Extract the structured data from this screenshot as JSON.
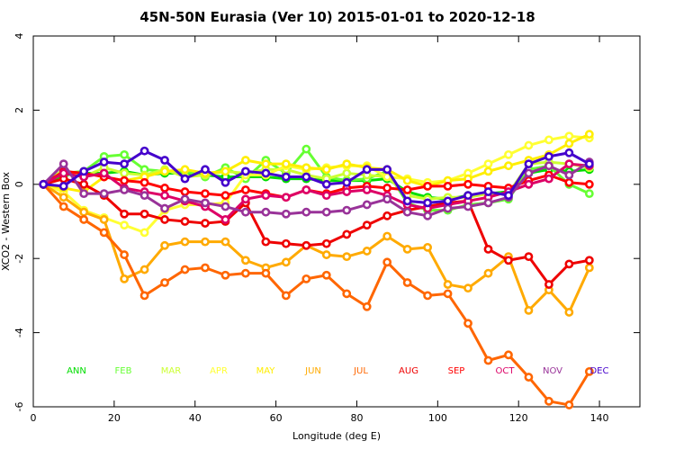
{
  "chart_data": {
    "type": "line",
    "title": "45N-50N Eurasia (Ver 10)   2015-01-01 to 2020-12-18",
    "xlabel": "Longitude (deg E)",
    "ylabel": "XCO2 - Western Box",
    "xlim": [
      0,
      150
    ],
    "ylim": [
      -6,
      4
    ],
    "xticks": [
      0,
      20,
      40,
      60,
      80,
      100,
      120,
      140
    ],
    "yticks": [
      -6,
      -4,
      -2,
      0,
      2,
      4
    ],
    "grid": false,
    "legend_placement": "bottom-inside",
    "x": [
      2.5,
      7.5,
      12.5,
      17.5,
      22.5,
      27.5,
      32.5,
      37.5,
      42.5,
      47.5,
      52.5,
      57.5,
      62.5,
      67.5,
      72.5,
      77.5,
      82.5,
      87.5,
      92.5,
      97.5,
      102.5,
      107.5,
      112.5,
      117.5,
      122.5,
      127.5,
      132.5,
      137.5
    ],
    "series": [
      {
        "name": "ANN",
        "color": "#00dd00",
        "values": [
          0,
          0.25,
          0.3,
          0.3,
          0.35,
          0.25,
          0.3,
          0.3,
          0.25,
          0.2,
          0.2,
          0.2,
          0.15,
          0.15,
          0.1,
          0.1,
          0.1,
          0.15,
          -0.2,
          -0.35,
          -0.4,
          -0.3,
          -0.25,
          -0.2,
          0.3,
          0.4,
          0.35,
          0.4
        ]
      },
      {
        "name": "FEB",
        "color": "#66ff33",
        "values": [
          0,
          0.3,
          0.35,
          0.75,
          0.8,
          0.4,
          0.35,
          0.35,
          0.2,
          0.45,
          0.15,
          0.65,
          0.3,
          0.95,
          0.2,
          0.1,
          0.15,
          0.35,
          -0.5,
          -0.7,
          -0.7,
          -0.55,
          -0.5,
          -0.4,
          0.4,
          0.5,
          0.0,
          -0.25
        ]
      },
      {
        "name": "MAR",
        "color": "#ccff33",
        "values": [
          0,
          0.4,
          0.2,
          0.45,
          0.3,
          0.25,
          0.4,
          0.2,
          0.25,
          0.35,
          0.3,
          0.4,
          0.4,
          0.25,
          0.15,
          0.3,
          0.25,
          0.2,
          -0.3,
          -0.4,
          -0.35,
          -0.35,
          -0.25,
          -0.25,
          0.55,
          0.6,
          0.55,
          0.45
        ]
      },
      {
        "name": "APR",
        "color": "#ffff33",
        "values": [
          0,
          -0.2,
          -0.7,
          -0.9,
          -1.1,
          -1.3,
          -0.7,
          -0.55,
          -0.55,
          -0.5,
          0.25,
          0.25,
          0.5,
          0.4,
          0.45,
          0.5,
          0.5,
          0.2,
          0.15,
          0.05,
          0.1,
          0.3,
          0.55,
          0.8,
          1.05,
          1.2,
          1.3,
          1.25
        ]
      },
      {
        "name": "MAY",
        "color": "#ffee00",
        "values": [
          0,
          -0.1,
          -0.2,
          0.2,
          0.1,
          0.2,
          0.35,
          0.4,
          0.3,
          0.35,
          0.65,
          0.55,
          0.55,
          0.45,
          0.4,
          0.55,
          0.45,
          0.4,
          0.1,
          -0.05,
          0.1,
          0.15,
          0.35,
          0.5,
          0.65,
          0.8,
          1.1,
          1.35
        ]
      },
      {
        "name": "JUN",
        "color": "#ffaa00",
        "values": [
          0,
          -0.35,
          -0.75,
          -0.95,
          -2.55,
          -2.3,
          -1.65,
          -1.55,
          -1.55,
          -1.55,
          -2.05,
          -2.25,
          -2.1,
          -1.65,
          -1.9,
          -1.95,
          -1.8,
          -1.4,
          -1.75,
          -1.7,
          -2.7,
          -2.8,
          -2.4,
          -1.95,
          -3.4,
          -2.85,
          -3.45,
          -2.25
        ]
      },
      {
        "name": "JUL",
        "color": "#ff6600",
        "values": [
          0,
          -0.6,
          -0.95,
          -1.3,
          -1.9,
          -3.0,
          -2.65,
          -2.3,
          -2.25,
          -2.45,
          -2.4,
          -2.4,
          -3.0,
          -2.55,
          -2.45,
          -2.95,
          -3.3,
          -2.1,
          -2.65,
          -3.0,
          -2.95,
          -3.75,
          -4.75,
          -4.6,
          -5.2,
          -5.85,
          -5.95,
          -5.05
        ]
      },
      {
        "name": "AUG",
        "color": "#ee0000",
        "values": [
          0,
          0.15,
          0.0,
          -0.3,
          -0.8,
          -0.8,
          -0.95,
          -1.0,
          -1.05,
          -1.0,
          -0.5,
          -1.55,
          -1.6,
          -1.65,
          -1.6,
          -1.35,
          -1.1,
          -0.85,
          -0.7,
          -0.6,
          -0.5,
          -0.45,
          -1.75,
          -2.05,
          -1.95,
          -2.7,
          -2.15,
          -2.05
        ]
      },
      {
        "name": "SEP",
        "color": "#ff0000",
        "values": [
          0,
          0.35,
          0.3,
          0.2,
          0.1,
          0.05,
          -0.1,
          -0.2,
          -0.25,
          -0.3,
          -0.15,
          -0.25,
          -0.35,
          -0.15,
          -0.25,
          -0.1,
          -0.05,
          -0.1,
          -0.15,
          -0.05,
          -0.05,
          0.0,
          -0.05,
          -0.1,
          0.1,
          0.25,
          0.05,
          0.0
        ]
      },
      {
        "name": "OCT",
        "color": "#dd0066",
        "values": [
          0,
          0.3,
          0.2,
          0.3,
          -0.1,
          -0.2,
          -0.3,
          -0.45,
          -0.6,
          -0.95,
          -0.4,
          -0.3,
          -0.35,
          -0.15,
          -0.3,
          -0.2,
          -0.15,
          -0.3,
          -0.55,
          -0.65,
          -0.55,
          -0.45,
          -0.35,
          -0.2,
          0.0,
          0.15,
          0.55,
          0.5
        ]
      },
      {
        "name": "NOV",
        "color": "#993399",
        "values": [
          0,
          0.55,
          -0.25,
          -0.25,
          -0.15,
          -0.3,
          -0.65,
          -0.4,
          -0.5,
          -0.6,
          -0.75,
          -0.75,
          -0.8,
          -0.75,
          -0.75,
          -0.7,
          -0.55,
          -0.4,
          -0.75,
          -0.85,
          -0.65,
          -0.6,
          -0.5,
          -0.35,
          0.3,
          0.5,
          0.25,
          0.6
        ]
      },
      {
        "name": "DEC",
        "color": "#4400cc",
        "values": [
          0,
          -0.05,
          0.35,
          0.6,
          0.55,
          0.9,
          0.65,
          0.15,
          0.4,
          0.05,
          0.35,
          0.3,
          0.2,
          0.2,
          0.0,
          0.05,
          0.4,
          0.4,
          -0.45,
          -0.5,
          -0.45,
          -0.3,
          -0.2,
          -0.3,
          0.55,
          0.75,
          0.85,
          0.55
        ]
      }
    ]
  }
}
